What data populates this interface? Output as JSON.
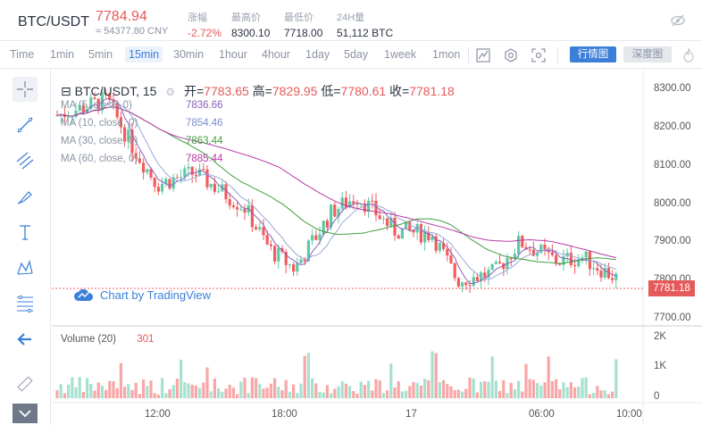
{
  "header": {
    "pair": "BTC/USDT",
    "price": "7784.94",
    "cny": "≈ 54377.80 CNY",
    "stats": [
      {
        "label": "涨幅",
        "value": "-2.72%",
        "red": true
      },
      {
        "label": "最高价",
        "value": "8300.10"
      },
      {
        "label": "最低价",
        "value": "7718.00"
      },
      {
        "label": "24H量",
        "value": "51,112 BTC"
      }
    ]
  },
  "toolbar": {
    "timeframes": [
      "Time",
      "1min",
      "5min",
      "15min",
      "30min",
      "1hour",
      "4hour",
      "1day",
      "5day",
      "1week",
      "1mon"
    ],
    "active": "15min",
    "btn_candle": "行情图",
    "btn_depth": "深度图"
  },
  "legend": {
    "symbol": "BTC/USDT",
    "interval": "15",
    "open_label": "开=",
    "open": "7783.65",
    "high_label": "高=",
    "high": "7829.95",
    "low_label": "低=",
    "low": "7780.61",
    "close_label": "收=",
    "close": "7781.18"
  },
  "ma": [
    {
      "label": "MA (5, close, 0)",
      "value": "7836.66",
      "color": "#8e5fb8"
    },
    {
      "label": "MA (10, close, 0)",
      "value": "7854.46",
      "color": "#7b8ec9"
    },
    {
      "label": "MA (30, close, 0)",
      "value": "7863.44",
      "color": "#3f9e3f"
    },
    {
      "label": "MA (60, close, 0)",
      "value": "7885.44",
      "color": "#b83aa6"
    }
  ],
  "tradingview": "Chart by TradingView",
  "volume": {
    "label": "Volume (20)",
    "value": "301"
  },
  "y_ticks": [
    "8300.00",
    "8200.00",
    "8100.00",
    "8000.00",
    "7900.00",
    "7800.00",
    "7700.00"
  ],
  "vol_ticks": [
    "2K",
    "1K",
    "0"
  ],
  "x_ticks": [
    "12:00",
    "18:00",
    "17",
    "06:00",
    "10:00"
  ],
  "current_price": "7781.18",
  "colors": {
    "up": "#5cc9a7",
    "down": "#f25c5c",
    "accent": "#3b7fd8"
  }
}
